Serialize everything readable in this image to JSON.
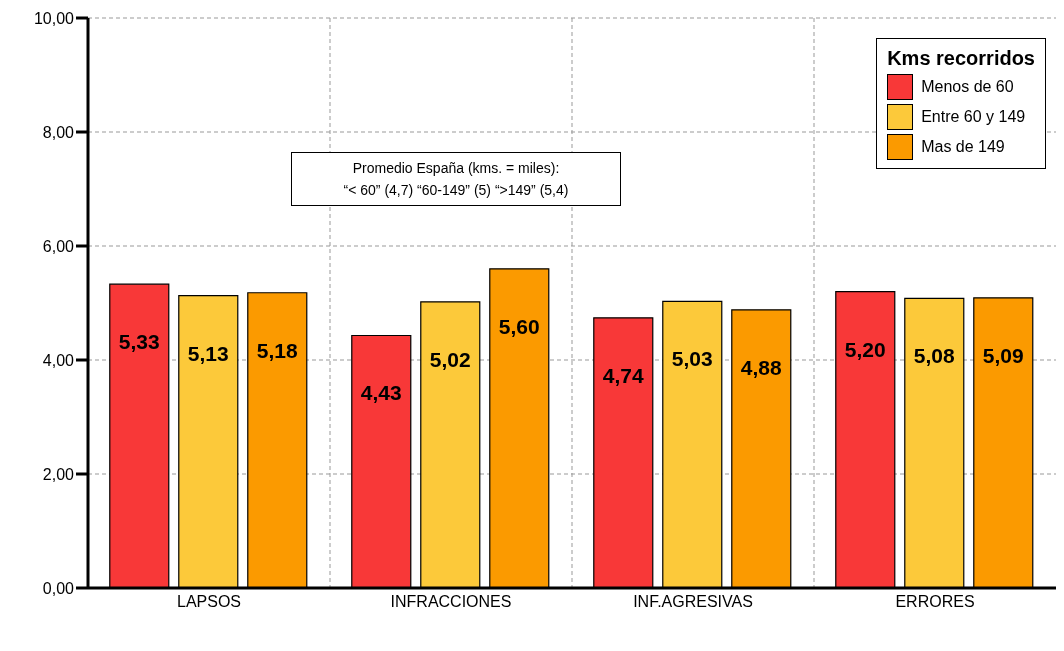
{
  "chart_data": {
    "type": "bar",
    "categories": [
      "LAPSOS",
      "INFRACCIONES",
      "INF.AGRESIVAS",
      "ERRORES"
    ],
    "series": [
      {
        "name": "Menos de 60",
        "color": "#f83838",
        "values": [
          5.33,
          4.43,
          4.74,
          5.2
        ],
        "value_labels": [
          "5,33",
          "4,43",
          "4,74",
          "5,20"
        ]
      },
      {
        "name": "Entre 60 y  149",
        "color": "#fcc93a",
        "values": [
          5.13,
          5.02,
          5.03,
          5.08
        ],
        "value_labels": [
          "5,13",
          "5,02",
          "5,03",
          "5,08"
        ]
      },
      {
        "name": "Mas de 149",
        "color": "#fb9a00",
        "values": [
          5.18,
          5.6,
          4.88,
          5.09
        ],
        "value_labels": [
          "5,18",
          "5,60",
          "4,88",
          "5,09"
        ]
      }
    ],
    "ylim": [
      0,
      10
    ],
    "yticks": [
      {
        "value": 0,
        "label": "0,00"
      },
      {
        "value": 2,
        "label": "2,00"
      },
      {
        "value": 4,
        "label": "4,00"
      },
      {
        "value": 6,
        "label": "6,00"
      },
      {
        "value": 8,
        "label": "8,00"
      },
      {
        "value": 10,
        "label": "10,00"
      }
    ],
    "grid": true,
    "legend": "top right",
    "legend_title": "Kms recorridos",
    "annotations": [
      "Promedio España (kms. = miles):",
      "“< 60” (4,7) “60-149” (5) “>149” (5,4)"
    ]
  }
}
